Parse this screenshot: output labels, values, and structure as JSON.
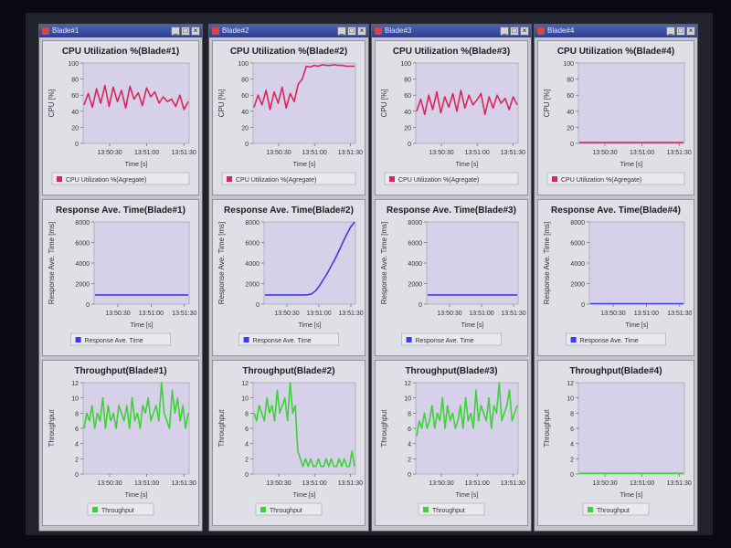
{
  "windows": [
    {
      "title": "Blade#1"
    },
    {
      "title": "Blade#2"
    },
    {
      "title": "Blade#3"
    },
    {
      "title": "Blade#4"
    }
  ],
  "colors": {
    "cpu": "#d8285a",
    "response": "#3c3cf0",
    "throughput": "#3fd13a",
    "plot_bg": "#d7d0e9"
  },
  "chart_data": [
    {
      "type": "line",
      "title": "CPU Utilization %(Blade#1)",
      "xlabel": "Time [s]",
      "ylabel": "CPU [%]",
      "ylim": [
        0,
        100
      ],
      "yticks": [
        0,
        20,
        40,
        60,
        80,
        100
      ],
      "xticks": [
        "13:50:30",
        "13:51:00",
        "13:51:30"
      ],
      "legend": "CPU Utilization %(Agregate)",
      "grid": false,
      "series": [
        {
          "name": "CPU Utilization %(Agregate)",
          "values": [
            48,
            62,
            45,
            68,
            50,
            72,
            46,
            70,
            52,
            66,
            44,
            71,
            55,
            63,
            47,
            69,
            58,
            64,
            50,
            58,
            52,
            55,
            46,
            60,
            42,
            52
          ]
        }
      ]
    },
    {
      "type": "line",
      "title": "CPU Utilization %(Blade#2)",
      "xlabel": "Time [s]",
      "ylabel": "CPU [%]",
      "ylim": [
        0,
        100
      ],
      "yticks": [
        0,
        20,
        40,
        60,
        80,
        100
      ],
      "xticks": [
        "13:50:30",
        "13:51:00",
        "13:51:30"
      ],
      "legend": "CPU Utilization %(Agregate)",
      "grid": false,
      "series": [
        {
          "name": "CPU Utilization %(Agregate)",
          "values": [
            45,
            60,
            48,
            66,
            42,
            64,
            50,
            70,
            44,
            62,
            52,
            74,
            80,
            96,
            95,
            97,
            96,
            98,
            97,
            97,
            98,
            97,
            97,
            96,
            96,
            96
          ]
        }
      ]
    },
    {
      "type": "line",
      "title": "CPU Utilization %(Blade#3)",
      "xlabel": "Time [s]",
      "ylabel": "CPU [%]",
      "ylim": [
        0,
        100
      ],
      "yticks": [
        0,
        20,
        40,
        60,
        80,
        100
      ],
      "xticks": [
        "13:50:30",
        "13:51:00",
        "13:51:30"
      ],
      "legend": "CPU Utilization %(Agregate)",
      "grid": false,
      "series": [
        {
          "name": "CPU Utilization %(Agregate)",
          "values": [
            40,
            55,
            36,
            60,
            42,
            64,
            38,
            58,
            45,
            62,
            40,
            66,
            44,
            60,
            48,
            54,
            62,
            36,
            58,
            44,
            60,
            50,
            56,
            42,
            58,
            48
          ]
        }
      ]
    },
    {
      "type": "line",
      "title": "CPU Utilization %(Blade#4)",
      "xlabel": "Time [s]",
      "ylabel": "CPU [%]",
      "ylim": [
        0,
        100
      ],
      "yticks": [
        0,
        20,
        40,
        60,
        80,
        100
      ],
      "xticks": [
        "13:50:30",
        "13:51:00",
        "13:51:30"
      ],
      "legend": "CPU Utilization %(Agregate)",
      "grid": false,
      "series": [
        {
          "name": "CPU Utilization %(Agregate)",
          "values": [
            1,
            1,
            1,
            1,
            1,
            1,
            1,
            1,
            1,
            1,
            1,
            1,
            1,
            1,
            1,
            1,
            1,
            1,
            1,
            1,
            1,
            1,
            1,
            1,
            1,
            1
          ]
        }
      ]
    },
    {
      "type": "line",
      "title": "Response Ave. Time(Blade#1)",
      "xlabel": "Time [s]",
      "ylabel": "Response Ave. Time [ms]",
      "ylim": [
        0,
        8000
      ],
      "yticks": [
        0,
        2000,
        4000,
        6000,
        8000
      ],
      "xticks": [
        "13:50:30",
        "13:51:00",
        "13:51:30"
      ],
      "legend": "Response Ave. Time",
      "grid": false,
      "series": [
        {
          "name": "Response Ave. Time",
          "values": [
            900,
            900,
            900,
            900,
            900,
            900,
            900,
            900,
            900,
            900,
            900,
            900,
            900,
            900,
            900,
            900,
            900,
            900,
            900,
            900,
            900,
            900,
            900,
            900,
            900,
            900
          ]
        }
      ]
    },
    {
      "type": "line",
      "title": "Response Ave. Time(Blade#2)",
      "xlabel": "Time [s]",
      "ylabel": "Response Ave. Time [ms]",
      "ylim": [
        0,
        8000
      ],
      "yticks": [
        0,
        2000,
        4000,
        6000,
        8000
      ],
      "xticks": [
        "13:50:30",
        "13:51:00",
        "13:51:30"
      ],
      "legend": "Response Ave. Time",
      "grid": false,
      "series": [
        {
          "name": "Response Ave. Time",
          "values": [
            900,
            900,
            900,
            900,
            900,
            900,
            900,
            900,
            900,
            900,
            900,
            920,
            1000,
            1300,
            1800,
            2400,
            3000,
            3700,
            4400,
            5200,
            6000,
            6800,
            7500,
            8000
          ]
        }
      ]
    },
    {
      "type": "line",
      "title": "Response Ave. Time(Blade#3)",
      "xlabel": "Time [s]",
      "ylabel": "Response Ave. Time [ms]",
      "ylim": [
        0,
        8000
      ],
      "yticks": [
        0,
        2000,
        4000,
        6000,
        8000
      ],
      "xticks": [
        "13:50:30",
        "13:51:00",
        "13:51:30"
      ],
      "legend": "Response Ave. Time",
      "grid": false,
      "series": [
        {
          "name": "Response Ave. Time",
          "values": [
            900,
            900,
            900,
            900,
            900,
            900,
            900,
            900,
            900,
            900,
            900,
            900,
            900,
            900,
            900,
            900,
            900,
            900,
            900,
            900,
            900,
            900,
            900,
            900,
            900,
            900
          ]
        }
      ]
    },
    {
      "type": "line",
      "title": "Response Ave. Time(Blade#4)",
      "xlabel": "Time [s]",
      "ylabel": "Response Ave. Time [ms]",
      "ylim": [
        0,
        8000
      ],
      "yticks": [
        0,
        2000,
        4000,
        6000,
        8000
      ],
      "xticks": [
        "13:50:30",
        "13:51:00",
        "13:51:30"
      ],
      "legend": "Response Ave. Time",
      "grid": false,
      "series": [
        {
          "name": "Response Ave. Time",
          "values": [
            40,
            40,
            40,
            40,
            40,
            40,
            40,
            40,
            40,
            40,
            40,
            40,
            40,
            40,
            40,
            40,
            40,
            40,
            40,
            40,
            40,
            40,
            40,
            40,
            40,
            40
          ]
        }
      ]
    },
    {
      "type": "line",
      "title": "Throughput(Blade#1)",
      "xlabel": "Time [s]",
      "ylabel": "Throughput",
      "ylim": [
        0,
        12
      ],
      "yticks": [
        0,
        2,
        4,
        6,
        8,
        10,
        12
      ],
      "xticks": [
        "13:50:30",
        "13:51:00",
        "13:51:30"
      ],
      "legend": "Throughput",
      "grid": false,
      "series": [
        {
          "name": "Throughput",
          "values": [
            6,
            8,
            7,
            9,
            6,
            8,
            7,
            10,
            6,
            9,
            7,
            8,
            6,
            9,
            8,
            7,
            9,
            6,
            10,
            7,
            8,
            6,
            9,
            8,
            10,
            7,
            8,
            9,
            7,
            12,
            8,
            7,
            6,
            11,
            8,
            10,
            7,
            9,
            6,
            8
          ]
        }
      ]
    },
    {
      "type": "line",
      "title": "Throughput(Blade#2)",
      "xlabel": "Time [s]",
      "ylabel": "Throughput",
      "ylim": [
        0,
        12
      ],
      "yticks": [
        0,
        2,
        4,
        6,
        8,
        10,
        12
      ],
      "xticks": [
        "13:50:30",
        "13:51:00",
        "13:51:30"
      ],
      "legend": "Throughput",
      "grid": false,
      "series": [
        {
          "name": "Throughput",
          "values": [
            8,
            7,
            9,
            8,
            7,
            10,
            8,
            9,
            7,
            11,
            8,
            9,
            10,
            7,
            12,
            8,
            9,
            3,
            2,
            1,
            2,
            1,
            2,
            1,
            1,
            2,
            1,
            1,
            2,
            1,
            2,
            1,
            1,
            2,
            1,
            2,
            1,
            1,
            3,
            1
          ]
        }
      ]
    },
    {
      "type": "line",
      "title": "Throughput(Blade#3)",
      "xlabel": "Time [s]",
      "ylabel": "Throughput",
      "ylim": [
        0,
        12
      ],
      "yticks": [
        0,
        2,
        4,
        6,
        8,
        10,
        12
      ],
      "xticks": [
        "13:50:30",
        "13:51:00",
        "13:51:30"
      ],
      "legend": "Throughput",
      "grid": false,
      "series": [
        {
          "name": "Throughput",
          "values": [
            5,
            7,
            6,
            8,
            6,
            7,
            9,
            6,
            8,
            7,
            10,
            6,
            9,
            7,
            8,
            6,
            7,
            9,
            6,
            10,
            7,
            8,
            6,
            11,
            7,
            9,
            8,
            7,
            10,
            6,
            9,
            8,
            12,
            7,
            8,
            9,
            11,
            7,
            8,
            9
          ]
        }
      ]
    },
    {
      "type": "line",
      "title": "Throughput(Blade#4)",
      "xlabel": "Time [s]",
      "ylabel": "Throughput",
      "ylim": [
        0,
        12
      ],
      "yticks": [
        0,
        2,
        4,
        6,
        8,
        10,
        12
      ],
      "xticks": [
        "13:50:30",
        "13:51:00",
        "13:51:30"
      ],
      "legend": "Throughput",
      "grid": false,
      "series": [
        {
          "name": "Throughput",
          "values": [
            0.1,
            0.1,
            0.1,
            0.1,
            0.1,
            0.1,
            0.1,
            0.1,
            0.1,
            0.1,
            0.1,
            0.1,
            0.1,
            0.1,
            0.1,
            0.1,
            0.1,
            0.1,
            0.1,
            0.1,
            0.1,
            0.1,
            0.1,
            0.1,
            0.1,
            0.1,
            0.1,
            0.1,
            0.1,
            0.1
          ]
        }
      ]
    }
  ]
}
